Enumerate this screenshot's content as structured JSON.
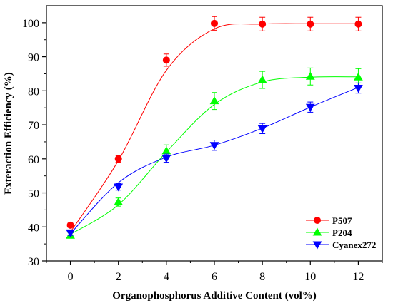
{
  "chart_data": {
    "type": "scatter",
    "xlabel": "Organophosphorus Additive Content (vol%)",
    "ylabel": "Exteraction Efficiency (%)",
    "xlim": [
      -1,
      13
    ],
    "ylim": [
      30,
      105
    ],
    "xticks": [
      0,
      2,
      4,
      6,
      8,
      10,
      12
    ],
    "yticks": [
      30,
      40,
      50,
      60,
      70,
      80,
      90,
      100
    ],
    "xtick_labels": [
      "0",
      "2",
      "4",
      "6",
      "8",
      "10",
      "12"
    ],
    "ytick_labels": [
      "30",
      "40",
      "50",
      "60",
      "70",
      "80",
      "90",
      "100"
    ],
    "grid": false,
    "legend_position": "bottom-right",
    "x": [
      0,
      2,
      4,
      6,
      8,
      10,
      12
    ],
    "series": [
      {
        "name": "P507",
        "color": "#ff0000",
        "marker": "circle",
        "values": [
          40.5,
          60.0,
          89.0,
          99.8,
          99.6,
          99.6,
          99.6
        ],
        "errors": [
          0.6,
          1.0,
          1.8,
          2.0,
          2.0,
          2.0,
          2.0
        ],
        "fit": [
          38.5,
          59.5,
          86.0,
          98.2,
          99.6,
          99.7,
          99.7
        ]
      },
      {
        "name": "P204",
        "color": "#00ff00",
        "marker": "triangle-up",
        "values": [
          37.5,
          47.3,
          62.3,
          77.0,
          83.2,
          84.2,
          84.0
        ],
        "errors": [
          0.8,
          1.2,
          1.8,
          2.5,
          2.5,
          2.5,
          2.5
        ],
        "fit": [
          37.8,
          46.5,
          62.0,
          76.0,
          82.6,
          84.0,
          84.1
        ]
      },
      {
        "name": "Cyanex272",
        "color": "#0000ff",
        "marker": "triangle-down",
        "values": [
          38.3,
          51.8,
          60.2,
          64.0,
          68.9,
          75.2,
          80.8
        ],
        "errors": [
          0.8,
          1.0,
          1.2,
          1.5,
          1.5,
          1.5,
          1.5
        ],
        "fit": [
          38.0,
          53.0,
          60.5,
          64.0,
          69.0,
          75.2,
          81.0
        ]
      }
    ]
  }
}
